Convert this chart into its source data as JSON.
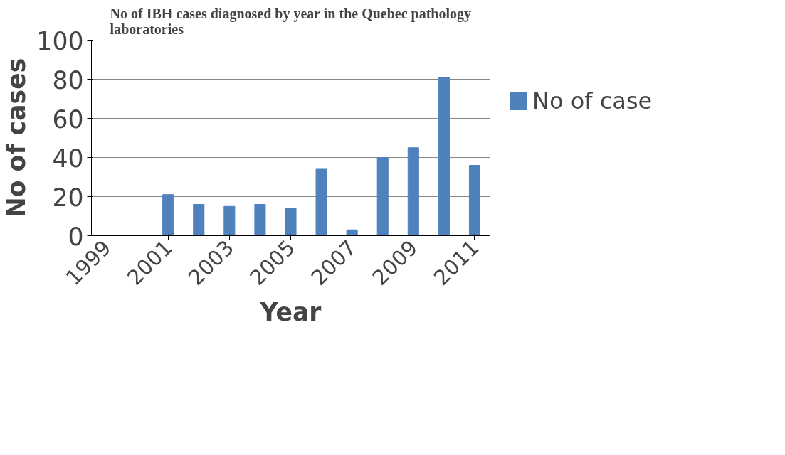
{
  "chart_data": {
    "type": "bar",
    "title": "No of IBH cases diagnosed by year in the Quebec pathology laboratories",
    "xlabel": "Year",
    "ylabel": "No of cases",
    "categories": [
      "1999",
      null,
      "2001",
      null,
      "2003",
      null,
      "2005",
      null,
      "2007",
      null,
      "2009",
      null,
      "2011"
    ],
    "series": [
      {
        "name": "No of case",
        "color": "#4f81bd",
        "values": [
          0,
          0,
          21,
          16,
          15,
          16,
          14,
          34,
          3,
          40,
          45,
          81,
          36
        ]
      }
    ],
    "ylim": [
      0,
      100
    ],
    "yticks": [
      0,
      20,
      40,
      60,
      80,
      100
    ],
    "grid": "y",
    "legend": "right"
  }
}
